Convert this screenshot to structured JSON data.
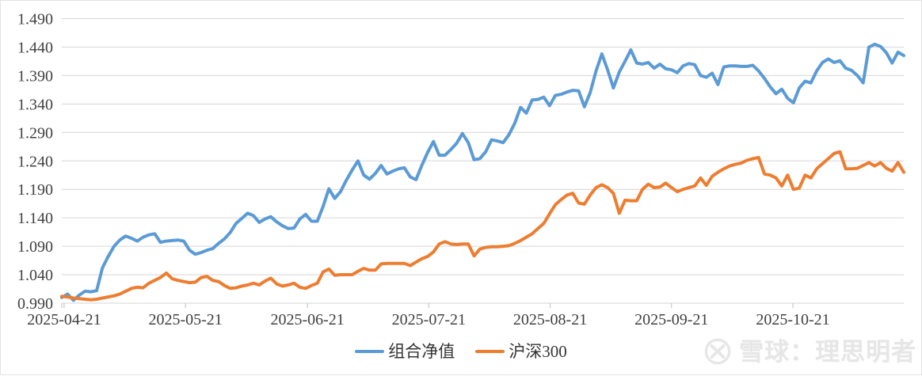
{
  "watermark": {
    "logo": "xueqiu-logo",
    "text": "雪球：理思明者"
  },
  "chart_data": {
    "type": "line",
    "title": "",
    "xlabel": "",
    "ylabel": "",
    "grid": "horizontal",
    "legend_position": "bottom-center",
    "ylim": [
      0.99,
      1.49
    ],
    "y_tick_step": 0.05,
    "y_tick_labels": [
      "1.490",
      "1.440",
      "1.390",
      "1.340",
      "1.290",
      "1.240",
      "1.190",
      "1.140",
      "1.090",
      "1.040",
      "0.990"
    ],
    "x_tick_labels": [
      "2025-04-21",
      "2025-05-21",
      "2025-06-21",
      "2025-07-21",
      "2025-08-21",
      "2025-09-21",
      "2025-10-21"
    ],
    "x_tick_positions": [
      0.4,
      21.3,
      42.3,
      63.2,
      84.1,
      105.0,
      125.9
    ],
    "x_unit": "trading-day-index",
    "series": [
      {
        "name": "组合净值",
        "color": "#5B9BD5",
        "values": [
          1.0,
          1.006,
          0.995,
          1.004,
          1.011,
          1.01,
          1.012,
          1.052,
          1.072,
          1.09,
          1.101,
          1.108,
          1.104,
          1.099,
          1.106,
          1.11,
          1.112,
          1.097,
          1.099,
          1.1,
          1.101,
          1.099,
          1.083,
          1.076,
          1.079,
          1.083,
          1.086,
          1.095,
          1.103,
          1.114,
          1.13,
          1.139,
          1.148,
          1.144,
          1.132,
          1.138,
          1.142,
          1.133,
          1.126,
          1.121,
          1.122,
          1.138,
          1.146,
          1.134,
          1.134,
          1.16,
          1.191,
          1.174,
          1.186,
          1.206,
          1.224,
          1.24,
          1.215,
          1.208,
          1.218,
          1.232,
          1.217,
          1.222,
          1.226,
          1.228,
          1.212,
          1.207,
          1.232,
          1.255,
          1.274,
          1.25,
          1.25,
          1.26,
          1.271,
          1.288,
          1.272,
          1.242,
          1.244,
          1.256,
          1.277,
          1.275,
          1.272,
          1.286,
          1.306,
          1.334,
          1.324,
          1.347,
          1.348,
          1.352,
          1.337,
          1.355,
          1.357,
          1.361,
          1.364,
          1.363,
          1.335,
          1.36,
          1.398,
          1.428,
          1.4,
          1.368,
          1.396,
          1.415,
          1.435,
          1.412,
          1.41,
          1.413,
          1.403,
          1.41,
          1.402,
          1.4,
          1.395,
          1.407,
          1.411,
          1.409,
          1.39,
          1.387,
          1.394,
          1.374,
          1.405,
          1.407,
          1.407,
          1.406,
          1.406,
          1.408,
          1.398,
          1.385,
          1.37,
          1.358,
          1.366,
          1.35,
          1.342,
          1.368,
          1.38,
          1.377,
          1.398,
          1.413,
          1.419,
          1.413,
          1.416,
          1.403,
          1.399,
          1.39,
          1.377,
          1.44,
          1.445,
          1.441,
          1.43,
          1.412,
          1.431,
          1.425
        ]
      },
      {
        "name": "沪深300",
        "color": "#ED7D31",
        "values": [
          1.002,
          1.001,
          0.999,
          0.998,
          0.997,
          0.996,
          0.997,
          0.999,
          1.001,
          1.003,
          1.006,
          1.011,
          1.016,
          1.018,
          1.017,
          1.025,
          1.03,
          1.035,
          1.043,
          1.033,
          1.03,
          1.028,
          1.026,
          1.027,
          1.035,
          1.037,
          1.03,
          1.028,
          1.021,
          1.016,
          1.017,
          1.02,
          1.022,
          1.025,
          1.022,
          1.029,
          1.034,
          1.024,
          1.02,
          1.022,
          1.025,
          1.018,
          1.016,
          1.021,
          1.025,
          1.045,
          1.05,
          1.039,
          1.04,
          1.04,
          1.04,
          1.046,
          1.051,
          1.048,
          1.048,
          1.059,
          1.06,
          1.06,
          1.06,
          1.06,
          1.056,
          1.062,
          1.068,
          1.072,
          1.08,
          1.094,
          1.098,
          1.094,
          1.093,
          1.094,
          1.094,
          1.073,
          1.085,
          1.088,
          1.089,
          1.089,
          1.09,
          1.091,
          1.095,
          1.1,
          1.106,
          1.112,
          1.121,
          1.13,
          1.147,
          1.163,
          1.172,
          1.18,
          1.183,
          1.166,
          1.164,
          1.18,
          1.193,
          1.198,
          1.193,
          1.183,
          1.148,
          1.171,
          1.17,
          1.17,
          1.19,
          1.199,
          1.193,
          1.194,
          1.201,
          1.193,
          1.186,
          1.19,
          1.193,
          1.196,
          1.21,
          1.197,
          1.213,
          1.22,
          1.226,
          1.231,
          1.234,
          1.236,
          1.241,
          1.244,
          1.246,
          1.217,
          1.215,
          1.21,
          1.196,
          1.215,
          1.19,
          1.192,
          1.215,
          1.21,
          1.226,
          1.235,
          1.244,
          1.253,
          1.256,
          1.226,
          1.226,
          1.227,
          1.232,
          1.237,
          1.231,
          1.237,
          1.227,
          1.222,
          1.237,
          1.22
        ]
      }
    ],
    "style": {
      "gridline_color": "#D6D6D6",
      "axis_tick_color": "#BFBFBF",
      "axis_label_color": "#404040",
      "line_width": 4
    }
  }
}
